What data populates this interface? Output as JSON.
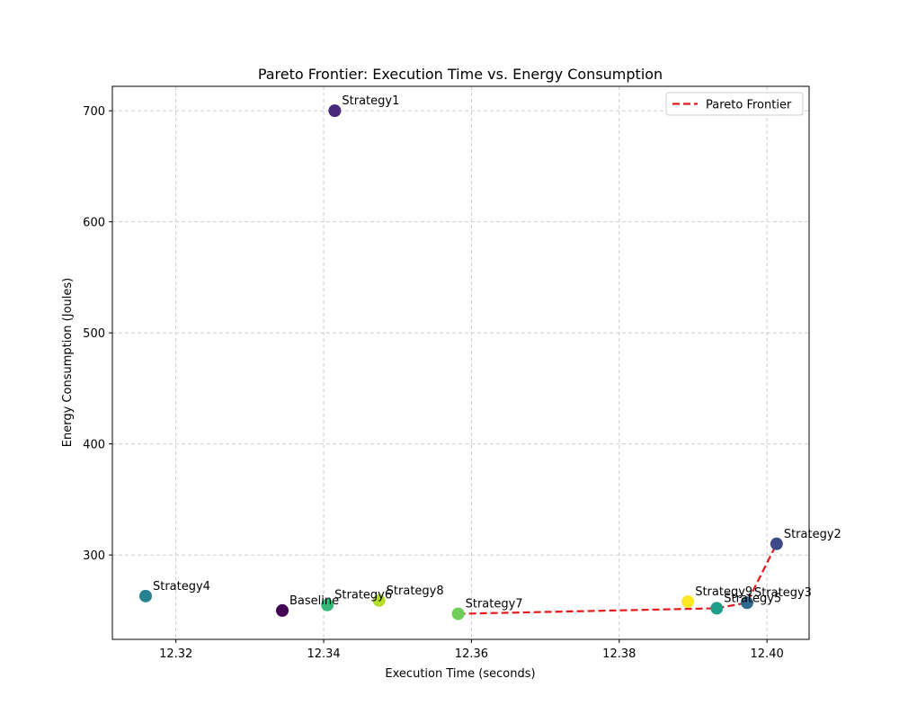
{
  "chart_data": {
    "type": "scatter",
    "title": "Pareto Frontier: Execution Time vs. Energy Consumption",
    "xlabel": "Execution Time (seconds)",
    "ylabel": "Energy Consumption (Joules)",
    "xlim": [
      12.3114,
      12.4057
    ],
    "ylim": [
      224,
      722
    ],
    "xticks": [
      12.32,
      12.34,
      12.36,
      12.38,
      12.4
    ],
    "xtick_labels": [
      "12.32",
      "12.34",
      "12.36",
      "12.38",
      "12.40"
    ],
    "yticks": [
      300,
      400,
      500,
      600,
      700
    ],
    "ytick_labels": [
      "300",
      "400",
      "500",
      "600",
      "700"
    ],
    "grid": true,
    "grid_style": "dashed",
    "legend_position": "top-right",
    "colormap": "viridis",
    "points": [
      {
        "label": "Baseline",
        "x": 12.3344,
        "y": 250,
        "color": "#440154"
      },
      {
        "label": "Strategy1",
        "x": 12.3415,
        "y": 700,
        "color": "#482878"
      },
      {
        "label": "Strategy2",
        "x": 12.4013,
        "y": 310,
        "color": "#3e4989"
      },
      {
        "label": "Strategy3",
        "x": 12.3973,
        "y": 257,
        "color": "#31688e"
      },
      {
        "label": "Strategy4",
        "x": 12.3159,
        "y": 263,
        "color": "#26828e"
      },
      {
        "label": "Strategy5",
        "x": 12.3932,
        "y": 252,
        "color": "#1f9e89"
      },
      {
        "label": "Strategy6",
        "x": 12.3405,
        "y": 255,
        "color": "#35b779"
      },
      {
        "label": "Strategy7",
        "x": 12.3582,
        "y": 247,
        "color": "#6ece58"
      },
      {
        "label": "Strategy8",
        "x": 12.3475,
        "y": 259,
        "color": "#b5de2b"
      },
      {
        "label": "Strategy9",
        "x": 12.3893,
        "y": 258,
        "color": "#fde725"
      }
    ],
    "series": [
      {
        "name": "Pareto Frontier",
        "color": "#e41a1c",
        "style": "dashed",
        "x": [
          12.3582,
          12.3932,
          12.3973,
          12.4013
        ],
        "y": [
          247,
          252,
          257,
          310
        ]
      }
    ]
  }
}
